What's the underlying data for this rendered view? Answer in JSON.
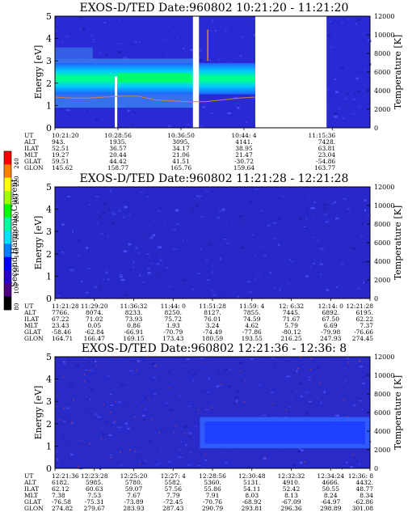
{
  "colorbar": {
    "label": "Second Harmonic Current",
    "ticks": [
      "80",
      "100",
      "120",
      "140",
      "160",
      "180",
      "200",
      "220",
      "240"
    ],
    "colors": [
      "#000000",
      "#4b0082",
      "#2a00c8",
      "#0000ff",
      "#0080ff",
      "#00e0ff",
      "#00ffa0",
      "#00ff00",
      "#a0ff00",
      "#ffff00",
      "#ff8000",
      "#ff0000"
    ]
  },
  "chart_data": [
    {
      "type": "heatmap",
      "title": "EXOS-D/TED   Date:960802  10:21:20 - 11:21:20",
      "ylabel": "Energy [eV]",
      "ylim": [
        0,
        5
      ],
      "yticks": [
        "0",
        "1",
        "2",
        "3",
        "4",
        "5"
      ],
      "y2label": "Temperature [K]",
      "y2lim": [
        0,
        12000
      ],
      "y2ticks": [
        "0",
        "2000",
        "4000",
        "6000",
        "8000",
        "10000",
        "12000"
      ],
      "band_center_ev": 2.2,
      "data_gaps": [
        [
          0.438,
          0.457
        ],
        [
          0.636,
          0.862
        ]
      ],
      "temperature_curve_k": [
        3300,
        3200,
        3200,
        3300,
        3400,
        3400,
        3000,
        2900,
        2800,
        2800,
        3000,
        3200,
        3300
      ],
      "orbit_rows": [
        "UT",
        "ALT",
        "ILAT",
        "MLT",
        "GLAT",
        "GLON"
      ],
      "orbit_columns": [
        [
          "10:21:20",
          "943.",
          "52.51",
          "19.27",
          "59.51",
          "145.62"
        ],
        [
          "10:28:56",
          "1935.",
          "36.57",
          "20.44",
          "44.42",
          "158.77"
        ],
        [
          "10:36:50",
          "3095.",
          "34.17",
          "21.06",
          "41.51",
          "165.76"
        ],
        [
          "10:44: 4",
          "4141.",
          "38.95",
          "21.47",
          "-30.72",
          "159.64"
        ],
        [
          "11:15:36",
          "7428.",
          "63.81",
          "23.04",
          "-54.86",
          "163.77"
        ]
      ]
    },
    {
      "type": "heatmap",
      "title": "EXOS-D/TED   Date:960802  11:21:28 - 12:21:28",
      "ylabel": "Energy [eV]",
      "ylim": [
        0,
        5
      ],
      "yticks": [
        "0",
        "1",
        "2",
        "3",
        "4",
        "5"
      ],
      "y2label": "Temperature [K]",
      "y2lim": [
        0,
        12000
      ],
      "y2ticks": [
        "0",
        "2000",
        "4000",
        "6000",
        "8000",
        "10000",
        "12000"
      ],
      "orbit_rows": [
        "UT",
        "ALT",
        "ILAT",
        "MLT",
        "GLAT",
        "GLON"
      ],
      "orbit_columns": [
        [
          "11:21:28",
          "7766.",
          "67.22",
          "23.43",
          "-58.46",
          "164.71"
        ],
        [
          "11:29:20",
          "8074.",
          "71.02",
          "0.05",
          "-62.84",
          "166.47"
        ],
        [
          "11:36:32",
          "8233.",
          "73.93",
          "0.86",
          "-66.91",
          "169.15"
        ],
        [
          "11:44: 0",
          "8250.",
          "75.72",
          "1.93",
          "-70.79",
          "173.43"
        ],
        [
          "11:51:28",
          "8127.",
          "76.01",
          "3.24",
          "-74.49",
          "180.59"
        ],
        [
          "11:59: 4",
          "7855.",
          "74.59",
          "4.62",
          "-77.86",
          "193.55"
        ],
        [
          "12: 6:32",
          "7445.",
          "71.67",
          "5.79",
          "-80.12",
          "216.25"
        ],
        [
          "12:14: 0",
          "6892.",
          "67.50",
          "6.69",
          "-79.98",
          "247.93"
        ],
        [
          "12:21:28",
          "6195.",
          "62.22",
          "7.37",
          "-76.66",
          "274.45"
        ]
      ]
    },
    {
      "type": "heatmap",
      "title": "EXOS-D/TED   Date:960802  12:21:36 - 12:36: 8",
      "ylabel": "Energy [eV]",
      "ylim": [
        0,
        5
      ],
      "yticks": [
        "0",
        "1",
        "2",
        "3",
        "4",
        "5"
      ],
      "y2label": "Temperature [K]",
      "y2lim": [
        0,
        12000
      ],
      "y2ticks": [
        "0",
        "2000",
        "4000",
        "6000",
        "8000",
        "10000",
        "12000"
      ],
      "orbit_rows": [
        "UT",
        "ALT",
        "ILAT",
        "MLT",
        "GLAT",
        "GLON"
      ],
      "orbit_columns": [
        [
          "12:21:36",
          "6182.",
          "62.12",
          "7.38",
          "-76.58",
          "274.82"
        ],
        [
          "12:23:28",
          "5985.",
          "60.63",
          "7.53",
          "-75.31",
          "279.67"
        ],
        [
          "12:25:20",
          "5780.",
          "59.07",
          "7.67",
          "-73.89",
          "283.93"
        ],
        [
          "12:27: 4",
          "5582.",
          "57.56",
          "7.79",
          "-72.45",
          "287.43"
        ],
        [
          "12:28:56",
          "5360.",
          "55.86",
          "7.91",
          "-70.76",
          "290.79"
        ],
        [
          "12:30:48",
          "5131.",
          "54.11",
          "8.03",
          "-68.92",
          "293.81"
        ],
        [
          "12:32:32",
          "4910.",
          "52.42",
          "8.13",
          "-67.09",
          "296.36"
        ],
        [
          "12:34:24",
          "4666.",
          "50.55",
          "8.24",
          "-64.97",
          "298.89"
        ],
        [
          "12:36: 8",
          "4432.",
          "48.77",
          "8.34",
          "-62.86",
          "301.08"
        ]
      ]
    }
  ]
}
